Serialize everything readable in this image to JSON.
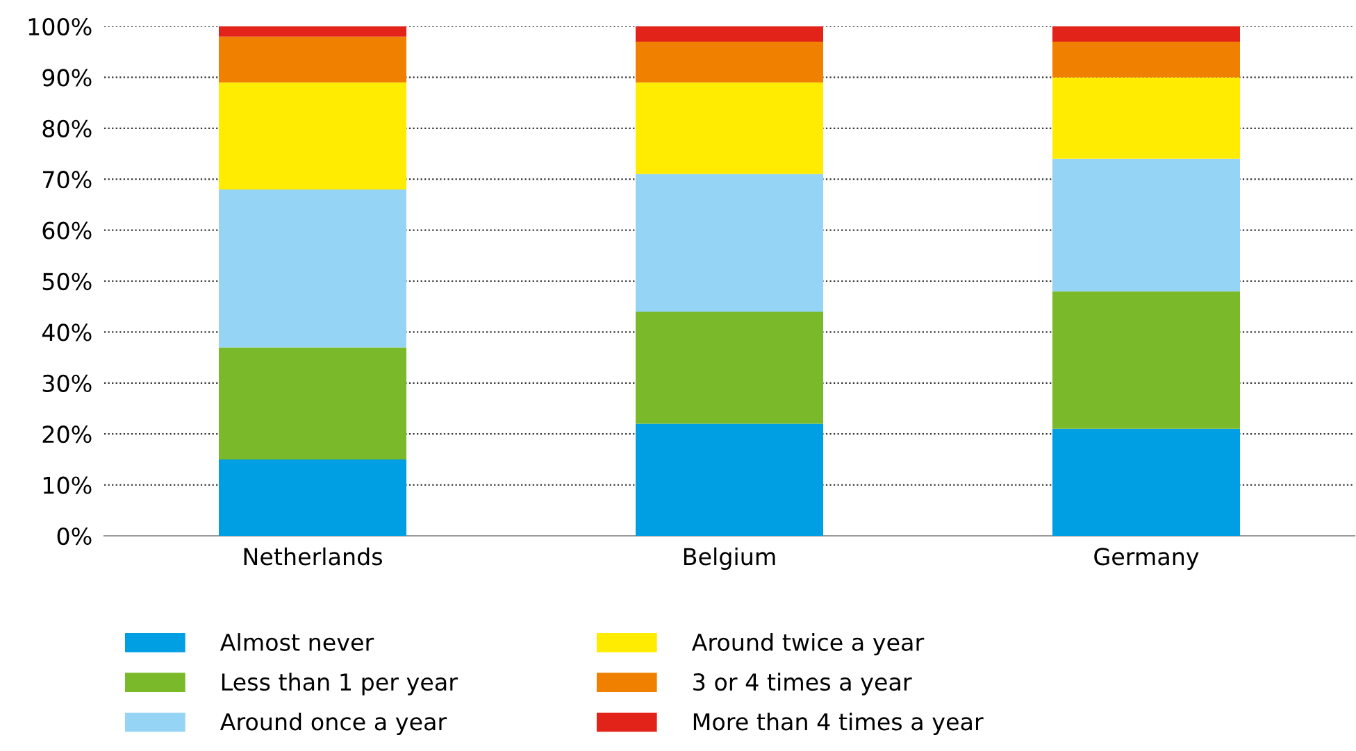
{
  "chart_data": {
    "type": "bar",
    "stacked": true,
    "categories": [
      "Netherlands",
      "Belgium",
      "Germany"
    ],
    "series": [
      {
        "name": "Almost never",
        "color": "#009fe3",
        "values": [
          15,
          22,
          21
        ]
      },
      {
        "name": "Less than 1 per year",
        "color": "#7ab929",
        "values": [
          22,
          22,
          27
        ]
      },
      {
        "name": "Around once a year",
        "color": "#95d4f5",
        "values": [
          31,
          27,
          26
        ]
      },
      {
        "name": "Around twice a year",
        "color": "#ffec00",
        "values": [
          21,
          18,
          16
        ]
      },
      {
        "name": "3 or 4 times a year",
        "color": "#f08000",
        "values": [
          9,
          8,
          7
        ]
      },
      {
        "name": "More than 4 times a year",
        "color": "#e2231a",
        "values": [
          2,
          3,
          3
        ]
      }
    ],
    "ylim": [
      0,
      100
    ],
    "yticks": [
      {
        "value": 0,
        "label": "0%"
      },
      {
        "value": 10,
        "label": "10%"
      },
      {
        "value": 20,
        "label": "20%"
      },
      {
        "value": 30,
        "label": "30%"
      },
      {
        "value": 40,
        "label": "40%"
      },
      {
        "value": 50,
        "label": "50%"
      },
      {
        "value": 60,
        "label": "60%"
      },
      {
        "value": 70,
        "label": "70%"
      },
      {
        "value": 80,
        "label": "80%"
      },
      {
        "value": 90,
        "label": "90%"
      },
      {
        "value": 100,
        "label": "100%"
      }
    ],
    "grid": "y",
    "legend": "bottom"
  }
}
